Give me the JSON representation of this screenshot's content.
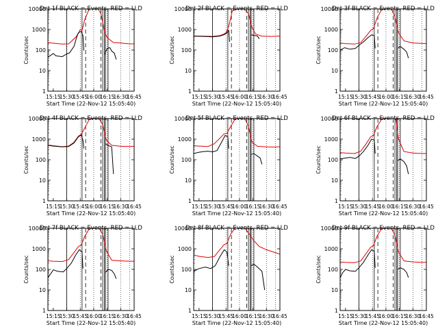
{
  "figure": {
    "start_time_label": "Start Time (22-Nov-12 15:05:40)",
    "ylabel": "Counts/sec",
    "legend_text": "BLACK = Events, RED = LLD"
  },
  "colors": {
    "events": "#000000",
    "lld": "#e00000",
    "axes": "#000000",
    "background": "#ffffff"
  },
  "chart_data": [
    {
      "type": "line",
      "title": "Det 1f BLACK = Events, RED = LLD",
      "xlabel": "Start Time (22-Nov-12 15:05:40)",
      "ylabel": "Counts/sec",
      "x_ticks": [
        "15:15",
        "15:30",
        "15:45",
        "16:00",
        "16:15",
        "16:30",
        "16:45"
      ],
      "y_ticks": [
        "1",
        "10",
        "100",
        "1000",
        "10000"
      ],
      "ylim": [
        1,
        10000
      ],
      "y_scale": "log",
      "series": [
        {
          "name": "LLD",
          "color": "#e00000",
          "x": [
            "15:09",
            "15:15",
            "15:25",
            "15:32",
            "15:40",
            "15:43",
            "15:45",
            "15:47",
            "15:50",
            "15:55",
            "16:00",
            "16:05",
            "16:08",
            "16:12",
            "16:15",
            "16:22",
            "16:30",
            "16:40",
            "16:45"
          ],
          "y": [
            230,
            215,
            195,
            200,
            420,
            650,
            1000,
            900,
            3000,
            10000,
            10000,
            10000,
            6000,
            800,
            400,
            230,
            220,
            200,
            200
          ]
        },
        {
          "name": "Events",
          "color": "#000000",
          "x": [
            "15:09",
            "15:12",
            "15:15",
            "15:18",
            "15:25",
            "15:30",
            "15:33",
            "15:38",
            "15:41",
            "15:43",
            "15:46",
            "15:48",
            "15:49"
          ],
          "y": [
            45,
            55,
            68,
            52,
            48,
            65,
            72,
            150,
            420,
            700,
            800,
            500,
            95
          ]
        },
        {
          "name": "Events",
          "color": "#000000",
          "x": [
            "16:12",
            "16:15",
            "16:18",
            "16:20",
            "16:23",
            "16:25"
          ],
          "y": [
            60,
            120,
            130,
            90,
            70,
            35
          ]
        }
      ]
    },
    {
      "type": "line",
      "title": "Det 2f BLACK = Events, RED = LLD",
      "xlabel": "Start Time (22-Nov-12 15:05:40)",
      "ylabel": "Counts/sec",
      "x_ticks": [
        "15:15",
        "15:30",
        "15:45",
        "16:00",
        "16:15",
        "16:30",
        "16:45"
      ],
      "y_ticks": [
        "1",
        "10",
        "100",
        "1000",
        "10000"
      ],
      "ylim": [
        1,
        10000
      ],
      "y_scale": "log",
      "series": [
        {
          "name": "LLD",
          "color": "#e00000",
          "x": [
            "15:09",
            "15:20",
            "15:30",
            "15:38",
            "15:42",
            "15:45",
            "15:48",
            "15:52",
            "15:58",
            "16:05",
            "16:10",
            "16:14",
            "16:18",
            "16:25",
            "16:35",
            "16:45"
          ],
          "y": [
            480,
            470,
            460,
            500,
            580,
            700,
            1400,
            8000,
            10000,
            10000,
            6000,
            1200,
            600,
            470,
            460,
            480
          ]
        },
        {
          "name": "Events",
          "color": "#000000",
          "x": [
            "15:09",
            "15:20",
            "15:30",
            "15:38",
            "15:42",
            "15:45",
            "15:48",
            "15:49"
          ],
          "y": [
            470,
            460,
            440,
            480,
            540,
            620,
            900,
            250
          ]
        },
        {
          "name": "Events",
          "color": "#000000",
          "x": [
            "16:13",
            "16:16",
            "16:20",
            "16:22"
          ],
          "y": [
            550,
            520,
            480,
            350
          ]
        }
      ]
    },
    {
      "type": "line",
      "title": "Det 3f BLACK = Events, RED = LLD",
      "xlabel": "Start Time (22-Nov-12 15:05:40)",
      "ylabel": "Counts/sec",
      "x_ticks": [
        "15:15",
        "15:30",
        "15:45",
        "16:00",
        "16:15",
        "16:30",
        "16:45"
      ],
      "y_ticks": [
        "1",
        "10",
        "100",
        "1000",
        "10000"
      ],
      "ylim": [
        1,
        10000
      ],
      "y_scale": "log",
      "series": [
        {
          "name": "LLD",
          "color": "#e00000",
          "x": [
            "15:09",
            "15:15",
            "15:25",
            "15:32",
            "15:38",
            "15:43",
            "15:46",
            "15:50",
            "15:55",
            "16:00",
            "16:06",
            "16:10",
            "16:14",
            "16:20",
            "16:30",
            "16:40",
            "16:45"
          ],
          "y": [
            220,
            205,
            195,
            230,
            480,
            900,
            1100,
            3500,
            9000,
            10000,
            10000,
            4000,
            700,
            280,
            220,
            210,
            205
          ]
        },
        {
          "name": "Events",
          "color": "#000000",
          "x": [
            "15:09",
            "15:14",
            "15:20",
            "15:26",
            "15:30",
            "15:35",
            "15:40",
            "15:44",
            "15:47",
            "15:48"
          ],
          "y": [
            100,
            130,
            110,
            120,
            170,
            250,
            400,
            550,
            500,
            120
          ]
        },
        {
          "name": "Events",
          "color": "#000000",
          "x": [
            "16:13",
            "16:16",
            "16:20",
            "16:23",
            "16:25"
          ],
          "y": [
            120,
            150,
            110,
            80,
            40
          ]
        }
      ]
    },
    {
      "type": "line",
      "title": "Det 4f BLACK = Events, RED = LLD",
      "xlabel": "Start Time (22-Nov-12 15:05:40)",
      "ylabel": "Counts/sec",
      "x_ticks": [
        "15:15",
        "15:30",
        "15:45",
        "16:00",
        "16:15",
        "16:30",
        "16:45"
      ],
      "y_ticks": [
        "1",
        "10",
        "100",
        "1000",
        "10000"
      ],
      "ylim": [
        1,
        10000
      ],
      "y_scale": "log",
      "series": [
        {
          "name": "LLD",
          "color": "#e00000",
          "x": [
            "15:09",
            "15:15",
            "15:25",
            "15:32",
            "15:38",
            "15:43",
            "15:46",
            "15:50",
            "15:55",
            "16:00",
            "16:06",
            "16:10",
            "16:14",
            "16:20",
            "16:30",
            "16:40",
            "16:45"
          ],
          "y": [
            520,
            480,
            430,
            460,
            700,
            1400,
            1700,
            3500,
            9000,
            10000,
            10000,
            5000,
            900,
            500,
            450,
            440,
            450
          ]
        },
        {
          "name": "Events",
          "color": "#000000",
          "x": [
            "15:09",
            "15:15",
            "15:25",
            "15:32",
            "15:38",
            "15:43",
            "15:46",
            "15:48",
            "15:49"
          ],
          "y": [
            500,
            460,
            420,
            440,
            650,
            1300,
            1600,
            900,
            350
          ]
        },
        {
          "name": "Events",
          "color": "#000000",
          "x": [
            "16:13",
            "16:16",
            "16:20",
            "16:22"
          ],
          "y": [
            600,
            500,
            420,
            20
          ]
        }
      ]
    },
    {
      "type": "line",
      "title": "Det 5f BLACK = Events, RED = LLD",
      "xlabel": "Start Time (22-Nov-12 15:05:40)",
      "ylabel": "Counts/sec",
      "x_ticks": [
        "15:15",
        "15:30",
        "15:45",
        "16:00",
        "16:15",
        "16:30",
        "16:45"
      ],
      "y_ticks": [
        "1",
        "10",
        "100",
        "1000",
        "10000"
      ],
      "ylim": [
        1,
        10000
      ],
      "y_scale": "log",
      "series": [
        {
          "name": "LLD",
          "color": "#e00000",
          "x": [
            "15:09",
            "15:15",
            "15:25",
            "15:32",
            "15:38",
            "15:43",
            "15:46",
            "15:50",
            "15:55",
            "16:00",
            "16:06",
            "16:10",
            "16:14",
            "16:20",
            "16:30",
            "16:40",
            "16:45"
          ],
          "y": [
            480,
            460,
            440,
            600,
            1100,
            1800,
            1900,
            4000,
            9500,
            10000,
            10000,
            4000,
            700,
            450,
            420,
            410,
            430
          ]
        },
        {
          "name": "Events",
          "color": "#000000",
          "x": [
            "15:09",
            "15:15",
            "15:20",
            "15:25",
            "15:30",
            "15:35",
            "15:40",
            "15:44",
            "15:47",
            "15:48"
          ],
          "y": [
            200,
            230,
            250,
            260,
            240,
            280,
            700,
            1500,
            1300,
            350
          ]
        },
        {
          "name": "Events",
          "color": "#000000",
          "x": [
            "16:13",
            "16:16",
            "16:20",
            "16:23",
            "16:25"
          ],
          "y": [
            180,
            200,
            150,
            120,
            60
          ]
        }
      ]
    },
    {
      "type": "line",
      "title": "Det 6f BLACK = Events, RED = LLD",
      "xlabel": "Start Time (22-Nov-12 15:05:40)",
      "ylabel": "Counts/sec",
      "x_ticks": [
        "15:15",
        "15:30",
        "15:45",
        "16:00",
        "16:15",
        "16:30",
        "16:45"
      ],
      "y_ticks": [
        "1",
        "10",
        "100",
        "1000",
        "10000"
      ],
      "ylim": [
        1,
        10000
      ],
      "y_scale": "log",
      "series": [
        {
          "name": "LLD",
          "color": "#e00000",
          "x": [
            "15:09",
            "15:15",
            "15:25",
            "15:32",
            "15:38",
            "15:43",
            "15:46",
            "15:50",
            "15:55",
            "16:00",
            "16:06",
            "16:11",
            "16:14",
            "16:20",
            "16:30",
            "16:40",
            "16:45"
          ],
          "y": [
            220,
            210,
            200,
            260,
            600,
            1300,
            1500,
            4000,
            9000,
            10000,
            10000,
            10000,
            1000,
            250,
            210,
            200,
            200
          ]
        },
        {
          "name": "Events",
          "color": "#000000",
          "x": [
            "15:09",
            "15:15",
            "15:20",
            "15:26",
            "15:30",
            "15:35",
            "15:40",
            "15:44",
            "15:47",
            "15:48"
          ],
          "y": [
            110,
            120,
            130,
            115,
            150,
            250,
            500,
            1000,
            900,
            200
          ]
        },
        {
          "name": "Events",
          "color": "#000000",
          "x": [
            "16:13",
            "16:16",
            "16:20",
            "16:23",
            "16:25"
          ],
          "y": [
            90,
            110,
            80,
            50,
            20
          ]
        }
      ]
    },
    {
      "type": "line",
      "title": "Det 7f BLACK = Events, RED = LLD",
      "xlabel": "Start Time (22-Nov-12 15:05:40)",
      "ylabel": "Counts/sec",
      "x_ticks": [
        "15:15",
        "15:30",
        "15:45",
        "16:00",
        "16:15",
        "16:30",
        "16:45"
      ],
      "y_ticks": [
        "1",
        "10",
        "100",
        "1000",
        "10000"
      ],
      "ylim": [
        1,
        10000
      ],
      "y_scale": "log",
      "series": [
        {
          "name": "LLD",
          "color": "#e00000",
          "x": [
            "15:09",
            "15:15",
            "15:25",
            "15:32",
            "15:38",
            "15:43",
            "15:46",
            "15:50",
            "15:55",
            "16:00",
            "16:06",
            "16:10",
            "16:14",
            "16:20",
            "16:30",
            "16:40",
            "16:45"
          ],
          "y": [
            260,
            250,
            240,
            300,
            650,
            1300,
            1500,
            4000,
            9500,
            10000,
            10000,
            5000,
            800,
            280,
            260,
            250,
            250
          ]
        },
        {
          "name": "Events",
          "color": "#000000",
          "x": [
            "15:09",
            "15:12",
            "15:15",
            "15:20",
            "15:26",
            "15:30",
            "15:35",
            "15:40",
            "15:44",
            "15:47",
            "15:48"
          ],
          "y": [
            40,
            60,
            95,
            80,
            75,
            110,
            200,
            500,
            900,
            700,
            110
          ]
        },
        {
          "name": "Events",
          "color": "#000000",
          "x": [
            "16:13",
            "16:16",
            "16:20",
            "16:23",
            "16:25"
          ],
          "y": [
            70,
            100,
            90,
            60,
            35
          ]
        }
      ]
    },
    {
      "type": "line",
      "title": "Det 8f BLACK = Events, RED = LLD",
      "xlabel": "Start Time (22-Nov-12 15:05:40)",
      "ylabel": "Counts/sec",
      "x_ticks": [
        "15:15",
        "15:30",
        "15:45",
        "16:00",
        "16:15",
        "16:30",
        "16:45"
      ],
      "y_ticks": [
        "1",
        "10",
        "100",
        "1000",
        "10000"
      ],
      "ylim": [
        1,
        10000
      ],
      "y_scale": "log",
      "series": [
        {
          "name": "LLD",
          "color": "#e00000",
          "x": [
            "15:09",
            "15:15",
            "15:25",
            "15:32",
            "15:38",
            "15:43",
            "15:46",
            "15:50",
            "15:55",
            "16:00",
            "16:06",
            "16:12",
            "16:16",
            "16:22",
            "16:30",
            "16:40",
            "16:45"
          ],
          "y": [
            500,
            430,
            380,
            420,
            900,
            1600,
            1800,
            5000,
            10000,
            10000,
            10000,
            4500,
            2500,
            1300,
            900,
            650,
            550
          ]
        },
        {
          "name": "Events",
          "color": "#000000",
          "x": [
            "15:09",
            "15:15",
            "15:22",
            "15:28",
            "15:33",
            "15:38",
            "15:43",
            "15:46",
            "15:48"
          ],
          "y": [
            80,
            110,
            130,
            110,
            150,
            400,
            900,
            700,
            150
          ]
        },
        {
          "name": "Events",
          "color": "#000000",
          "x": [
            "16:13",
            "16:16",
            "16:20",
            "16:25",
            "16:28"
          ],
          "y": [
            150,
            180,
            130,
            80,
            10
          ]
        }
      ]
    },
    {
      "type": "line",
      "title": "Det 9f BLACK = Events, RED = LLD",
      "xlabel": "Start Time (22-Nov-12 15:05:40)",
      "ylabel": "Counts/sec",
      "x_ticks": [
        "15:15",
        "15:30",
        "15:45",
        "16:00",
        "16:15",
        "16:30",
        "16:45"
      ],
      "y_ticks": [
        "1",
        "10",
        "100",
        "1000",
        "10000"
      ],
      "ylim": [
        1,
        10000
      ],
      "y_scale": "log",
      "series": [
        {
          "name": "LLD",
          "color": "#e00000",
          "x": [
            "15:09",
            "15:15",
            "15:25",
            "15:32",
            "15:38",
            "15:43",
            "15:46",
            "15:50",
            "15:55",
            "16:00",
            "16:06",
            "16:10",
            "16:14",
            "16:20",
            "16:30",
            "16:40",
            "16:45"
          ],
          "y": [
            230,
            220,
            210,
            260,
            600,
            1200,
            1400,
            4000,
            9500,
            10000,
            10000,
            4500,
            700,
            260,
            230,
            220,
            220
          ]
        },
        {
          "name": "Events",
          "color": "#000000",
          "x": [
            "15:09",
            "15:12",
            "15:15",
            "15:20",
            "15:26",
            "15:30",
            "15:35",
            "15:40",
            "15:44",
            "15:47",
            "15:48"
          ],
          "y": [
            40,
            70,
            100,
            85,
            80,
            120,
            220,
            500,
            900,
            750,
            120
          ]
        },
        {
          "name": "Events",
          "color": "#000000",
          "x": [
            "16:13",
            "16:16",
            "16:20",
            "16:23",
            "16:25"
          ],
          "y": [
            100,
            120,
            100,
            70,
            40
          ]
        }
      ]
    }
  ]
}
